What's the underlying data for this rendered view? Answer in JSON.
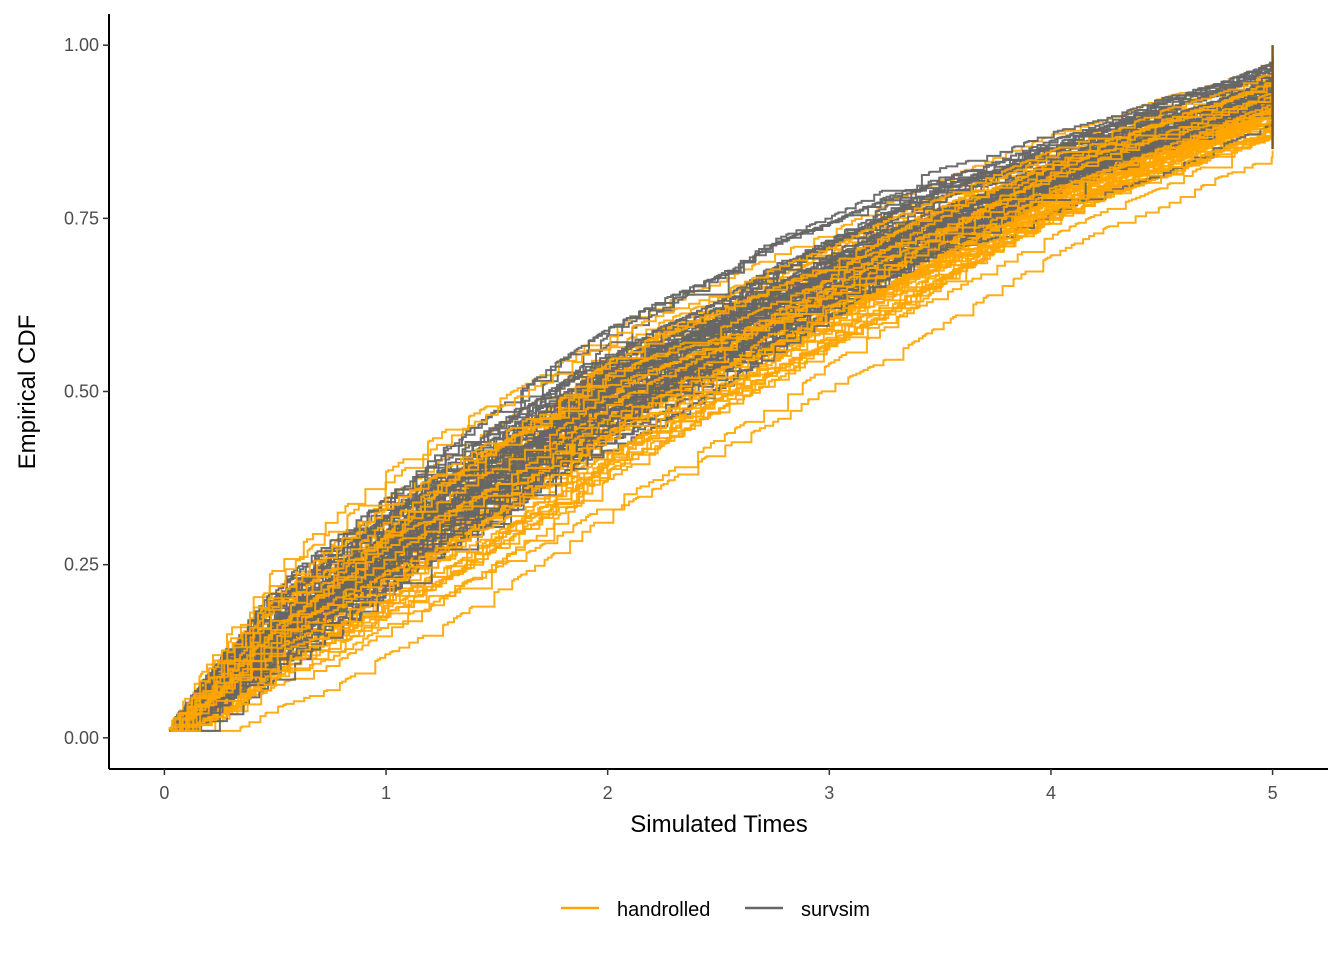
{
  "chart_data": {
    "type": "line",
    "subtype": "step (empirical CDF curves, many replicates per group)",
    "xlabel": "Simulated Times",
    "ylabel": "Empirical CDF",
    "xlim": [
      -0.25,
      5.25
    ],
    "ylim": [
      -0.045,
      1.045
    ],
    "x_ticks": [
      0,
      1,
      2,
      3,
      4,
      5
    ],
    "x_tick_labels": [
      "0",
      "1",
      "2",
      "3",
      "4",
      "5"
    ],
    "y_ticks": [
      0,
      0.25,
      0.5,
      0.75,
      1.0
    ],
    "y_tick_labels": [
      "0.00",
      "0.25",
      "0.50",
      "0.75",
      "1.00"
    ],
    "grid": false,
    "legend_position": "bottom",
    "x": [
      0,
      0.25,
      0.5,
      0.75,
      1.0,
      1.25,
      1.5,
      1.75,
      2.0,
      2.25,
      2.5,
      2.75,
      3.0,
      3.25,
      3.5,
      3.75,
      4.0,
      4.25,
      4.5,
      4.75,
      5.0
    ],
    "series": [
      {
        "name": "handrolled",
        "color": "#FFA500",
        "replicates": 50,
        "mean_cdf": [
          0.01,
          0.07,
          0.15,
          0.2,
          0.26,
          0.31,
          0.36,
          0.41,
          0.47,
          0.51,
          0.55,
          0.59,
          0.63,
          0.67,
          0.71,
          0.75,
          0.79,
          0.82,
          0.85,
          0.88,
          0.91
        ],
        "spread": [
          0,
          0.03,
          0.045,
          0.055,
          0.06,
          0.065,
          0.065,
          0.065,
          0.065,
          0.065,
          0.06,
          0.06,
          0.055,
          0.055,
          0.05,
          0.045,
          0.04,
          0.035,
          0.035,
          0.03,
          0.03
        ]
      },
      {
        "name": "survsim",
        "color": "#666666",
        "replicates": 50,
        "mean_cdf": [
          0.01,
          0.08,
          0.16,
          0.22,
          0.28,
          0.34,
          0.39,
          0.45,
          0.5,
          0.54,
          0.58,
          0.63,
          0.67,
          0.71,
          0.75,
          0.78,
          0.82,
          0.85,
          0.88,
          0.91,
          0.94
        ],
        "spread": [
          0,
          0.025,
          0.04,
          0.045,
          0.05,
          0.055,
          0.06,
          0.06,
          0.06,
          0.06,
          0.055,
          0.055,
          0.05,
          0.05,
          0.045,
          0.04,
          0.035,
          0.03,
          0.03,
          0.025,
          0.025
        ]
      }
    ]
  }
}
